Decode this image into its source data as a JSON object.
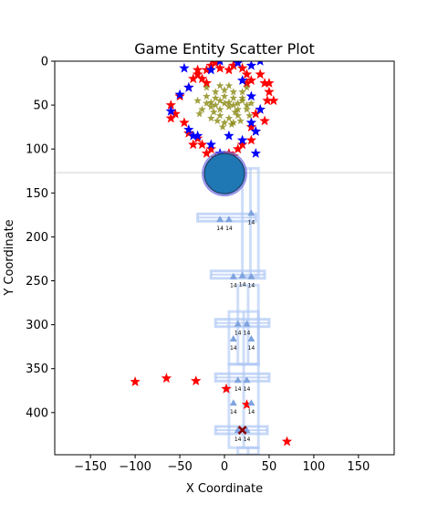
{
  "chart_data": {
    "type": "scatter",
    "title": "Game Entity Scatter Plot",
    "xlabel": "X Coordinate",
    "ylabel": "Y Coordinate",
    "xlim": [
      -190,
      190
    ],
    "ylim": [
      448,
      0
    ],
    "y_inverted": true,
    "grid": false,
    "legend": "none",
    "x_ticks": [
      -150,
      -100,
      -50,
      0,
      50,
      100,
      150
    ],
    "y_ticks": [
      0,
      50,
      100,
      150,
      200,
      250,
      300,
      350,
      400
    ],
    "reference_line": {
      "y": 127,
      "color": "#d3d3d3"
    },
    "colors": {
      "red_star": "#ff0000",
      "blue_star": "#0000ff",
      "olive_star": "#808000",
      "circle": "#1f77b4",
      "circle_edge": "#6b6be0",
      "ladder": "#aec7f5",
      "triangle": "#7fa3de",
      "cross": "#8b0000"
    },
    "series": [
      {
        "marker": "star",
        "color_key": "red_star",
        "points": [
          [
            -30,
            10
          ],
          [
            -25,
            20
          ],
          [
            -20,
            10
          ],
          [
            -15,
            5
          ],
          [
            -10,
            2
          ],
          [
            -5,
            8
          ],
          [
            5,
            10
          ],
          [
            10,
            5
          ],
          [
            20,
            8
          ],
          [
            25,
            15
          ],
          [
            30,
            22
          ],
          [
            40,
            15
          ],
          [
            45,
            25
          ],
          [
            50,
            35
          ],
          [
            48,
            45
          ],
          [
            55,
            45
          ],
          [
            40,
            55
          ],
          [
            45,
            68
          ],
          [
            35,
            80
          ],
          [
            30,
            90
          ],
          [
            20,
            95
          ],
          [
            15,
            100
          ],
          [
            5,
            105
          ],
          [
            0,
            108
          ],
          [
            -10,
            110
          ],
          [
            -15,
            100
          ],
          [
            -25,
            95
          ],
          [
            -30,
            88
          ],
          [
            -40,
            82
          ],
          [
            -45,
            70
          ],
          [
            -55,
            60
          ],
          [
            -60,
            65
          ],
          [
            -60,
            50
          ],
          [
            -50,
            40
          ],
          [
            -40,
            30
          ],
          [
            -35,
            20
          ],
          [
            -30,
            15
          ],
          [
            -20,
            25
          ],
          [
            25,
            25
          ],
          [
            50,
            25
          ],
          [
            35,
            60
          ],
          [
            -35,
            95
          ],
          [
            -20,
            105
          ],
          [
            10,
            108
          ],
          [
            30,
            75
          ],
          [
            -100,
            365
          ],
          [
            -65,
            361
          ],
          [
            -32,
            364
          ],
          [
            2,
            373
          ],
          [
            25,
            391
          ],
          [
            70,
            433
          ]
        ]
      },
      {
        "marker": "star",
        "color_key": "blue_star",
        "points": [
          [
            -5,
            0
          ],
          [
            15,
            2
          ],
          [
            30,
            5
          ],
          [
            40,
            0
          ],
          [
            -45,
            8
          ],
          [
            -15,
            10
          ],
          [
            -40,
            30
          ],
          [
            -50,
            38
          ],
          [
            -60,
            57
          ],
          [
            -35,
            85
          ],
          [
            -40,
            78
          ],
          [
            -15,
            95
          ],
          [
            -5,
            105
          ],
          [
            5,
            85
          ],
          [
            20,
            90
          ],
          [
            30,
            70
          ],
          [
            35,
            80
          ],
          [
            40,
            55
          ],
          [
            -30,
            85
          ],
          [
            30,
            40
          ],
          [
            20,
            22
          ],
          [
            35,
            105
          ]
        ]
      },
      {
        "marker": "star",
        "color_key": "olive_star",
        "points": [
          [
            -20,
            48
          ],
          [
            -15,
            47
          ],
          [
            -10,
            50
          ],
          [
            -5,
            45
          ],
          [
            0,
            48
          ],
          [
            5,
            47
          ],
          [
            10,
            50
          ],
          [
            15,
            48
          ],
          [
            20,
            45
          ],
          [
            25,
            50
          ],
          [
            -15,
            52
          ],
          [
            -5,
            55
          ],
          [
            5,
            52
          ],
          [
            15,
            55
          ],
          [
            -10,
            42
          ],
          [
            0,
            40
          ],
          [
            10,
            42
          ],
          [
            20,
            42
          ],
          [
            -25,
            55
          ],
          [
            25,
            55
          ],
          [
            -20,
            40
          ],
          [
            -10,
            35
          ],
          [
            0,
            33
          ],
          [
            10,
            35
          ],
          [
            20,
            35
          ],
          [
            -5,
            62
          ],
          [
            5,
            65
          ],
          [
            15,
            62
          ],
          [
            -15,
            65
          ],
          [
            0,
            70
          ],
          [
            10,
            70
          ],
          [
            -5,
            28
          ],
          [
            5,
            28
          ],
          [
            30,
            48
          ],
          [
            -30,
            45
          ],
          [
            -12,
            58
          ],
          [
            12,
            58
          ],
          [
            -2,
            75
          ],
          [
            -20,
            30
          ],
          [
            25,
            30
          ],
          [
            -8,
            68
          ],
          [
            8,
            72
          ],
          [
            18,
            68
          ],
          [
            -28,
            60
          ],
          [
            28,
            62
          ]
        ]
      },
      {
        "marker": "circle",
        "color_key": "circle",
        "points": [
          [
            0,
            128
          ]
        ]
      },
      {
        "marker": "triangle",
        "color_key": "triangle",
        "label": "14",
        "points": [
          [
            30,
            173
          ],
          [
            -5,
            180
          ],
          [
            5,
            180
          ],
          [
            10,
            245
          ],
          [
            20,
            244
          ],
          [
            30,
            245
          ],
          [
            15,
            299
          ],
          [
            25,
            299
          ],
          [
            10,
            316
          ],
          [
            30,
            316
          ],
          [
            15,
            363
          ],
          [
            25,
            363
          ],
          [
            10,
            389
          ],
          [
            30,
            389
          ],
          [
            15,
            420
          ],
          [
            25,
            420
          ]
        ]
      },
      {
        "marker": "x",
        "color_key": "cross",
        "points": [
          [
            20,
            420
          ]
        ]
      }
    ],
    "ladders": [
      {
        "x_min": 20,
        "x_max": 38,
        "y_min": 122,
        "y_max": 245
      },
      {
        "x_min": 15,
        "x_max": 38,
        "y_min": 255,
        "y_max": 345
      },
      {
        "x_min": 5,
        "x_max": 38,
        "y_min": 285,
        "y_max": 345
      },
      {
        "x_min": 5,
        "x_max": 38,
        "y_min": 345,
        "y_max": 440
      },
      {
        "x_min": 15,
        "x_max": 38,
        "y_min": 440,
        "y_max": 448
      }
    ],
    "platforms": [
      {
        "x_min": -30,
        "x_max": 35,
        "y": 178
      },
      {
        "x_min": -15,
        "x_max": 45,
        "y": 243
      },
      {
        "x_min": -10,
        "x_max": 50,
        "y": 298
      },
      {
        "x_min": -10,
        "x_max": 50,
        "y": 360
      },
      {
        "x_min": -10,
        "x_max": 48,
        "y": 420
      }
    ]
  }
}
